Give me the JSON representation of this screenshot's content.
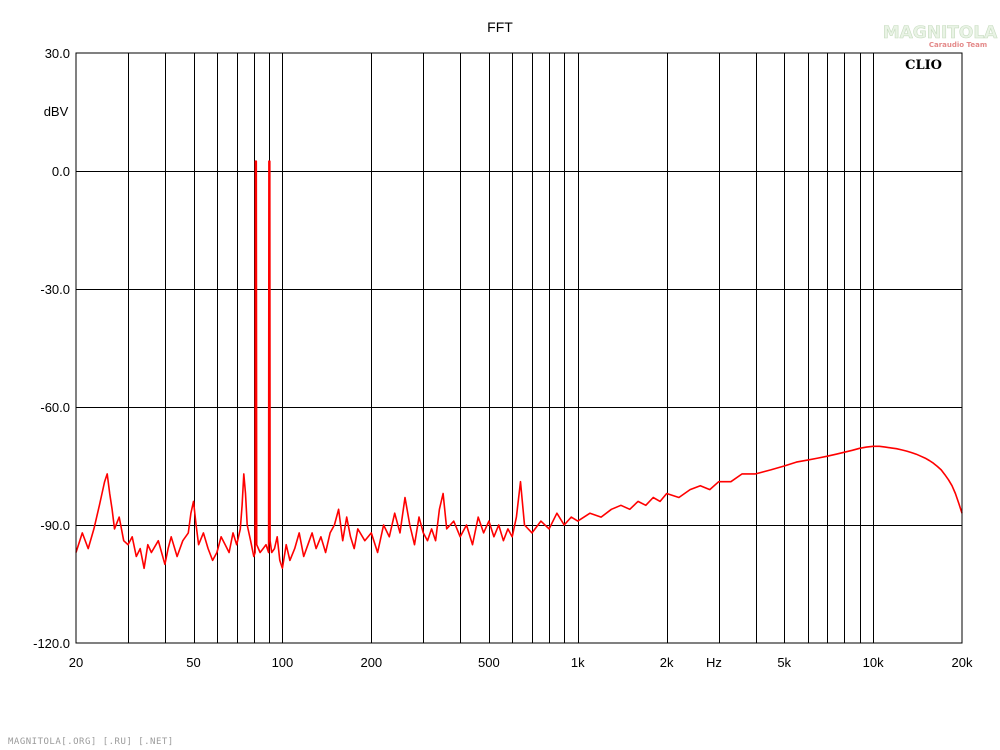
{
  "chart_data": {
    "type": "line",
    "title": "FFT",
    "brand": "CLIO",
    "x_unit": "Hz",
    "y_unit": "dBV",
    "x_scale": "log",
    "xlim": [
      20,
      20000
    ],
    "ylim": [
      -120,
      30
    ],
    "grid": true,
    "line_color": "#ff0000",
    "x_major_ticks": [
      {
        "value": 20,
        "label": "20"
      },
      {
        "value": 50,
        "label": "50"
      },
      {
        "value": 100,
        "label": "100"
      },
      {
        "value": 200,
        "label": "200"
      },
      {
        "value": 500,
        "label": "500"
      },
      {
        "value": 1000,
        "label": "1k"
      },
      {
        "value": 2000,
        "label": "2k"
      },
      {
        "value": 5000,
        "label": "5k"
      },
      {
        "value": 10000,
        "label": "10k"
      },
      {
        "value": 20000,
        "label": "20k"
      }
    ],
    "x_minor_grid": [
      30,
      40,
      60,
      70,
      80,
      90,
      300,
      400,
      600,
      700,
      800,
      900,
      3000,
      4000,
      6000,
      7000,
      8000,
      9000
    ],
    "y_ticks": [
      {
        "value": 30,
        "label": "30.0"
      },
      {
        "value": 0,
        "label": "0.0"
      },
      {
        "value": -30,
        "label": "-30.0"
      },
      {
        "value": -60,
        "label": "-60.0"
      },
      {
        "value": -90,
        "label": "-90.0"
      },
      {
        "value": -120,
        "label": "-120.0"
      }
    ],
    "series": [
      {
        "points": [
          [
            20,
            -97
          ],
          [
            21,
            -92
          ],
          [
            22,
            -96
          ],
          [
            23,
            -91
          ],
          [
            24,
            -85
          ],
          [
            24.5,
            -82
          ],
          [
            25,
            -79
          ],
          [
            25.5,
            -77
          ],
          [
            26,
            -82
          ],
          [
            26.5,
            -86
          ],
          [
            27,
            -91
          ],
          [
            28,
            -88
          ],
          [
            29,
            -94
          ],
          [
            30,
            -95
          ],
          [
            31,
            -93
          ],
          [
            32,
            -98
          ],
          [
            33,
            -96
          ],
          [
            34,
            -101
          ],
          [
            35,
            -95
          ],
          [
            36,
            -97
          ],
          [
            38,
            -94
          ],
          [
            40,
            -100
          ],
          [
            41,
            -96
          ],
          [
            42,
            -93
          ],
          [
            44,
            -98
          ],
          [
            46,
            -94
          ],
          [
            48,
            -92
          ],
          [
            49,
            -87
          ],
          [
            50,
            -84
          ],
          [
            51,
            -90
          ],
          [
            52,
            -95
          ],
          [
            54,
            -92
          ],
          [
            56,
            -96
          ],
          [
            58,
            -99
          ],
          [
            60,
            -97
          ],
          [
            62,
            -93
          ],
          [
            64,
            -95
          ],
          [
            66,
            -97
          ],
          [
            68,
            -92
          ],
          [
            70,
            -95
          ],
          [
            72,
            -91
          ],
          [
            73,
            -85
          ],
          [
            74,
            -77
          ],
          [
            75,
            -82
          ],
          [
            76,
            -90
          ],
          [
            78,
            -94
          ],
          [
            79,
            -96
          ],
          [
            80,
            -98
          ],
          [
            80.8,
            -97
          ],
          [
            81,
            2.5
          ],
          [
            81.6,
            2.5
          ],
          [
            81.8,
            -95
          ],
          [
            84,
            -97
          ],
          [
            86,
            -96
          ],
          [
            88,
            -95
          ],
          [
            89.8,
            -97
          ],
          [
            90,
            2.5
          ],
          [
            90.6,
            2.5
          ],
          [
            90.8,
            -94
          ],
          [
            92,
            -97
          ],
          [
            94,
            -96
          ],
          [
            96,
            -93
          ],
          [
            98,
            -99
          ],
          [
            100,
            -101
          ],
          [
            103,
            -95
          ],
          [
            106,
            -99
          ],
          [
            110,
            -96
          ],
          [
            114,
            -92
          ],
          [
            118,
            -98
          ],
          [
            122,
            -95
          ],
          [
            126,
            -92
          ],
          [
            130,
            -96
          ],
          [
            135,
            -93
          ],
          [
            140,
            -97
          ],
          [
            145,
            -92
          ],
          [
            150,
            -90
          ],
          [
            155,
            -86
          ],
          [
            160,
            -94
          ],
          [
            165,
            -88
          ],
          [
            170,
            -93
          ],
          [
            175,
            -96
          ],
          [
            180,
            -91
          ],
          [
            190,
            -94
          ],
          [
            200,
            -92
          ],
          [
            210,
            -97
          ],
          [
            220,
            -90
          ],
          [
            230,
            -93
          ],
          [
            240,
            -87
          ],
          [
            250,
            -92
          ],
          [
            260,
            -83
          ],
          [
            270,
            -90
          ],
          [
            280,
            -95
          ],
          [
            290,
            -88
          ],
          [
            300,
            -92
          ],
          [
            310,
            -94
          ],
          [
            320,
            -91
          ],
          [
            330,
            -94
          ],
          [
            340,
            -86
          ],
          [
            350,
            -82
          ],
          [
            360,
            -91
          ],
          [
            380,
            -89
          ],
          [
            400,
            -93
          ],
          [
            420,
            -90
          ],
          [
            440,
            -95
          ],
          [
            460,
            -88
          ],
          [
            480,
            -92
          ],
          [
            500,
            -89
          ],
          [
            520,
            -93
          ],
          [
            540,
            -90
          ],
          [
            560,
            -94
          ],
          [
            580,
            -91
          ],
          [
            600,
            -93
          ],
          [
            620,
            -88
          ],
          [
            640,
            -79
          ],
          [
            660,
            -90
          ],
          [
            700,
            -92
          ],
          [
            750,
            -89
          ],
          [
            800,
            -91
          ],
          [
            850,
            -87
          ],
          [
            900,
            -90
          ],
          [
            950,
            -88
          ],
          [
            1000,
            -89
          ],
          [
            1100,
            -87
          ],
          [
            1200,
            -88
          ],
          [
            1300,
            -86
          ],
          [
            1400,
            -85
          ],
          [
            1500,
            -86
          ],
          [
            1600,
            -84
          ],
          [
            1700,
            -85
          ],
          [
            1800,
            -83
          ],
          [
            1900,
            -84
          ],
          [
            2000,
            -82
          ],
          [
            2200,
            -83
          ],
          [
            2400,
            -81
          ],
          [
            2600,
            -80
          ],
          [
            2800,
            -81
          ],
          [
            3000,
            -79
          ],
          [
            3300,
            -79
          ],
          [
            3600,
            -77
          ],
          [
            4000,
            -77
          ],
          [
            4500,
            -76
          ],
          [
            5000,
            -75
          ],
          [
            5500,
            -74
          ],
          [
            6000,
            -73.5
          ],
          [
            6500,
            -73
          ],
          [
            7000,
            -72.5
          ],
          [
            7500,
            -72
          ],
          [
            8000,
            -71.5
          ],
          [
            8500,
            -71
          ],
          [
            9000,
            -70.5
          ],
          [
            9500,
            -70.2
          ],
          [
            10000,
            -70
          ],
          [
            10500,
            -70
          ],
          [
            11000,
            -70.2
          ],
          [
            11500,
            -70.4
          ],
          [
            12000,
            -70.6
          ],
          [
            12500,
            -70.9
          ],
          [
            13000,
            -71.2
          ],
          [
            13500,
            -71.6
          ],
          [
            14000,
            -72
          ],
          [
            14500,
            -72.5
          ],
          [
            15000,
            -73
          ],
          [
            15500,
            -73.6
          ],
          [
            16000,
            -74.3
          ],
          [
            16500,
            -75.1
          ],
          [
            17000,
            -76
          ],
          [
            17500,
            -77.2
          ],
          [
            18000,
            -78.5
          ],
          [
            18500,
            -80
          ],
          [
            19000,
            -82
          ],
          [
            19500,
            -84.5
          ],
          [
            20000,
            -87
          ]
        ]
      }
    ]
  },
  "watermark": {
    "logo_text": "MAGNITOLA",
    "logo_subtext": "Caraudio Team",
    "footer_text": "MAGNITOLA[.ORG] [.RU] [.NET]"
  }
}
